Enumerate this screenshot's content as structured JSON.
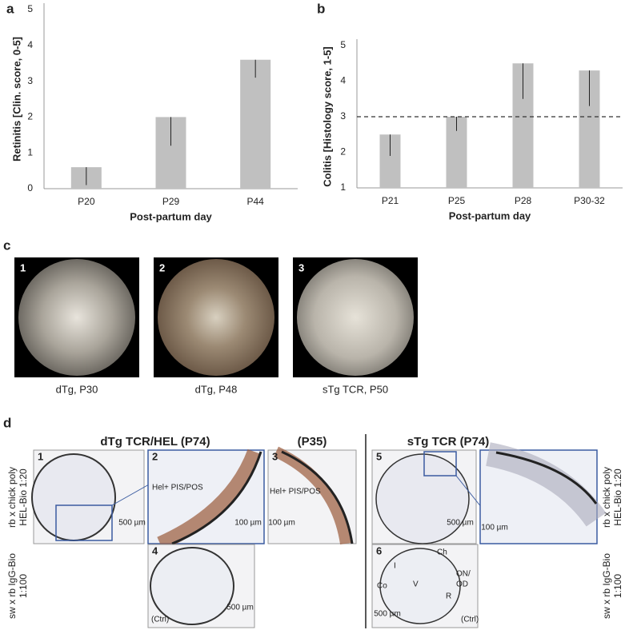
{
  "chart_data": [
    {
      "type": "bar",
      "panel_label": "a",
      "ylabel": "Retinitis [Clin. score, 0-5]",
      "xlabel": "Post-partum day",
      "categories": [
        "P20",
        "P29",
        "P44"
      ],
      "values": [
        0.6,
        2.0,
        3.6
      ],
      "errors": [
        0.5,
        0.8,
        0.5
      ],
      "color": "#c0c0c0",
      "ylim": [
        0,
        5
      ],
      "yticks": [
        0,
        1,
        2,
        3,
        4,
        5
      ],
      "grid": false
    },
    {
      "type": "bar",
      "panel_label": "b",
      "ylabel": "Colitis [Histology score, 1-5]",
      "xlabel": "Post-partum day",
      "categories": [
        "P21",
        "P25",
        "P28",
        "P30-32"
      ],
      "values": [
        2.5,
        3.0,
        4.5,
        4.3
      ],
      "errors": [
        0.6,
        0.4,
        1.0,
        1.0
      ],
      "color": "#c0c0c0",
      "ylim": [
        1,
        5
      ],
      "yticks": [
        1,
        2,
        3,
        4,
        5
      ],
      "grid": false,
      "reference_line": 3
    }
  ],
  "panel_c": {
    "label": "c",
    "images": [
      {
        "number": "1",
        "caption": "dTg, P30"
      },
      {
        "number": "2",
        "caption": "dTg, P48"
      },
      {
        "number": "3",
        "caption": "sTg TCR, P50"
      }
    ]
  },
  "panel_d": {
    "label": "d",
    "headers": [
      "dTg TCR/HEL (P74)",
      "(P35)",
      "sTg TCR (P74)"
    ],
    "row_labels": [
      [
        "rb x chick poly",
        "HEL-Bio 1:20"
      ],
      [
        "sw x rb IgG-Bio",
        "1:100"
      ]
    ],
    "images": [
      {
        "number": "1",
        "scale": "500 µm"
      },
      {
        "number": "2",
        "scale": "100 µm",
        "note": "Hel+ PIS/POS"
      },
      {
        "number": "3",
        "scale": "100 µm",
        "note": "Hel+ PIS/POS"
      },
      {
        "number": "4",
        "scale": "500 µm",
        "note": "(Ctrl)"
      },
      {
        "number": "5",
        "scale": "500 µm"
      },
      {
        "number": "6",
        "scale": "500 µm",
        "note": "(Ctrl)"
      },
      {
        "scale": "100 µm"
      }
    ],
    "anatomy": [
      "Co",
      "I",
      "Ch",
      "V",
      "ON/",
      "OD",
      "R"
    ]
  }
}
